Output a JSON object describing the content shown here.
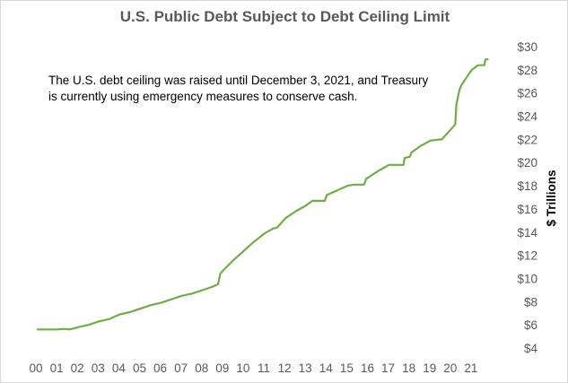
{
  "chart_data": {
    "type": "line",
    "title": "U.S. Public Debt Subject to Debt Ceiling Limit",
    "annotation": [
      "The U.S. debt ceiling was raised until December 3, 2021,  and Treasury",
      "is currently using emergency measures to conserve cash."
    ],
    "ylabel": "$ Trillions",
    "xlabel": "",
    "xlim": [
      2000,
      2022
    ],
    "ylim": [
      4,
      30
    ],
    "y_ticks": [
      4,
      6,
      8,
      10,
      12,
      14,
      16,
      18,
      20,
      22,
      24,
      26,
      28,
      30
    ],
    "y_tick_labels": [
      "$4",
      "$6",
      "$8",
      "$10",
      "$12",
      "$14",
      "$16",
      "$18",
      "$20",
      "$22",
      "$24",
      "$26",
      "$28",
      "$30"
    ],
    "x_ticks": [
      2000,
      2001,
      2002,
      2003,
      2004,
      2005,
      2006,
      2007,
      2008,
      2009,
      2010,
      2011,
      2012,
      2013,
      2014,
      2015,
      2016,
      2017,
      2018,
      2019,
      2020,
      2021
    ],
    "x_tick_labels": [
      "00",
      "01",
      "02",
      "03",
      "04",
      "05",
      "06",
      "07",
      "08",
      "09",
      "10",
      "11",
      "12",
      "13",
      "14",
      "15",
      "16",
      "17",
      "18",
      "19",
      "20",
      "21"
    ],
    "grid": false,
    "legend": "none",
    "series": [
      {
        "color": "#70ad47",
        "x": [
          2000.0,
          2000.5,
          2001.0,
          2001.3,
          2001.6,
          2002.0,
          2002.5,
          2003.0,
          2003.5,
          2004.0,
          2004.5,
          2005.0,
          2005.5,
          2006.0,
          2006.5,
          2007.0,
          2007.5,
          2008.0,
          2008.5,
          2008.75,
          2008.85,
          2009.0,
          2009.5,
          2010.0,
          2010.5,
          2011.0,
          2011.4,
          2011.6,
          2012.0,
          2012.5,
          2013.0,
          2013.3,
          2013.4,
          2013.9,
          2014.0,
          2014.5,
          2015.0,
          2015.3,
          2015.8,
          2015.9,
          2016.5,
          2017.0,
          2017.2,
          2017.7,
          2017.75,
          2018.0,
          2018.1,
          2018.5,
          2019.0,
          2019.5,
          2019.55,
          2020.0,
          2020.2,
          2020.25,
          2020.4,
          2020.5,
          2020.8,
          2021.0,
          2021.3,
          2021.6,
          2021.65,
          2021.8
        ],
        "y": [
          5.6,
          5.6,
          5.6,
          5.65,
          5.6,
          5.8,
          6.0,
          6.3,
          6.5,
          6.9,
          7.1,
          7.4,
          7.7,
          7.9,
          8.2,
          8.5,
          8.7,
          9.0,
          9.3,
          9.5,
          10.4,
          10.7,
          11.6,
          12.4,
          13.2,
          13.9,
          14.3,
          14.4,
          15.2,
          15.8,
          16.3,
          16.7,
          16.7,
          16.7,
          17.2,
          17.6,
          18.0,
          18.1,
          18.1,
          18.6,
          19.3,
          19.8,
          19.8,
          19.8,
          20.4,
          20.5,
          20.9,
          21.4,
          21.9,
          22.0,
          22.0,
          22.9,
          23.3,
          25.0,
          26.3,
          26.7,
          27.5,
          28.0,
          28.4,
          28.4,
          28.9,
          28.9
        ]
      }
    ]
  }
}
